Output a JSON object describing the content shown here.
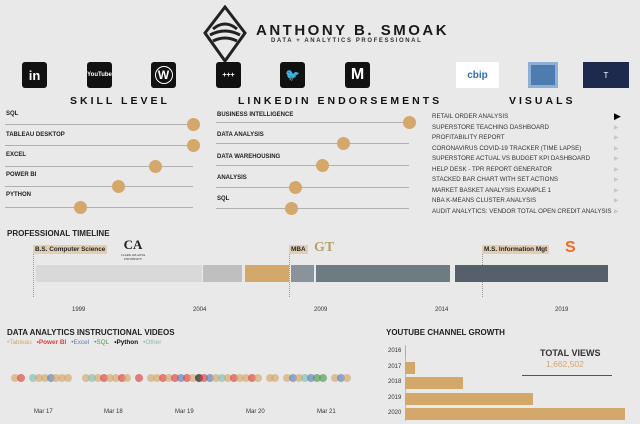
{
  "header": {
    "name": "ANTHONY B. SMOAK",
    "tagline": "DATA + ANALYTICS PROFESSIONAL"
  },
  "social": [
    {
      "name": "linkedin",
      "glyph": "in"
    },
    {
      "name": "youtube",
      "glyph": "YouTube"
    },
    {
      "name": "wordpress",
      "glyph": "W"
    },
    {
      "name": "tableau",
      "glyph": "+++"
    },
    {
      "name": "twitter",
      "glyph": "🐦"
    },
    {
      "name": "medium",
      "glyph": "M"
    }
  ],
  "badges": [
    {
      "name": "cbip",
      "text": "cbip"
    },
    {
      "name": "certification"
    },
    {
      "name": "university-badge",
      "text": "T"
    }
  ],
  "skills": {
    "title": "SKILL LEVEL",
    "items": [
      {
        "label": "SQL",
        "level": 1.0
      },
      {
        "label": "TABLEAU DESKTOP",
        "level": 1.0
      },
      {
        "label": "EXCEL",
        "level": 0.8
      },
      {
        "label": "POWER BI",
        "level": 0.6
      },
      {
        "label": "PYTHON",
        "level": 0.4
      }
    ]
  },
  "endorsements": {
    "title": "LINKEDIN ENDORSEMENTS",
    "items": [
      {
        "label": "BUSINESS INTELLIGENCE",
        "level": 1.0
      },
      {
        "label": "DATA ANALYSIS",
        "level": 0.66
      },
      {
        "label": "DATA WAREHOUSING",
        "level": 0.55
      },
      {
        "label": "ANALYSIS",
        "level": 0.41
      },
      {
        "label": "SQL",
        "level": 0.39
      }
    ]
  },
  "visuals": {
    "title": "VISUALS",
    "items": [
      "RETAIL ORDER ANALYSIS",
      "SUPERSTORE TEACHING DASHBOARD",
      "PROFITABILITY REPORT",
      "CORONAVIRUS COVID-19 TRACKER (TIME LAPSE)",
      "SUPERSTORE ACTUAL VS BUDGET KPI DASHBOARD",
      "HELP DESK - TPR REPORT GENERATOR",
      "STACKED BAR CHART WITH SET ACTIONS",
      "MARKET BASKET ANALYSIS EXAMPLE 1",
      "NBA K-MEANS CLUSTER ANALYSIS",
      "AUDIT ANALYTICS: VENDOR TOTAL OPEN CREDIT ANALYSIS"
    ],
    "selected": 0
  },
  "timeline": {
    "title": "PROFESSIONAL TIMELINE",
    "degrees": [
      "B.S. Computer Science",
      "MBA",
      "M.S. Information Mgt"
    ],
    "school_logo_text": "CLARK ATLANTA UNIVERSITY",
    "years": [
      "1999",
      "2004",
      "2009",
      "2014",
      "2019"
    ],
    "segment_colors": [
      "#d9d9d9",
      "#bfbfbf",
      "#d4a76a",
      "#8a9399",
      "#6e7b83",
      "#56606b"
    ]
  },
  "videos": {
    "title": "DATA ANALYTICS INSTRUCTIONAL VIDEOS",
    "legend": [
      {
        "label": "Tableau",
        "color": "#d4a76a"
      },
      {
        "label": "Power BI",
        "color": "#e0413c"
      },
      {
        "label": "Excel",
        "color": "#5b7fb5"
      },
      {
        "label": "SQL",
        "color": "#4f9a4f"
      },
      {
        "label": "Python",
        "color": "#111111"
      },
      {
        "label": "Other",
        "color": "#7fbfb0"
      }
    ],
    "x_ticks": [
      "Mar 17",
      "Mar 18",
      "Mar 19",
      "Mar 20",
      "Mar 21"
    ],
    "pattern": "TP.OTTETTT..TOTPTTPT.P.TTPTPEPTYPETOTPTTPT.TT.TETOESS.TET"
  },
  "chart_data": {
    "type": "bar",
    "title": "YOUTUBE CHANNEL GROWTH",
    "categories": [
      "2016",
      "2017",
      "2018",
      "2019",
      "2020"
    ],
    "values": [
      2000,
      40000,
      232000,
      511000,
      879000
    ],
    "orientation": "horizontal",
    "color": "#d4a76a",
    "annotation": {
      "label": "TOTAL VIEWS",
      "value": "1,662,502"
    }
  }
}
